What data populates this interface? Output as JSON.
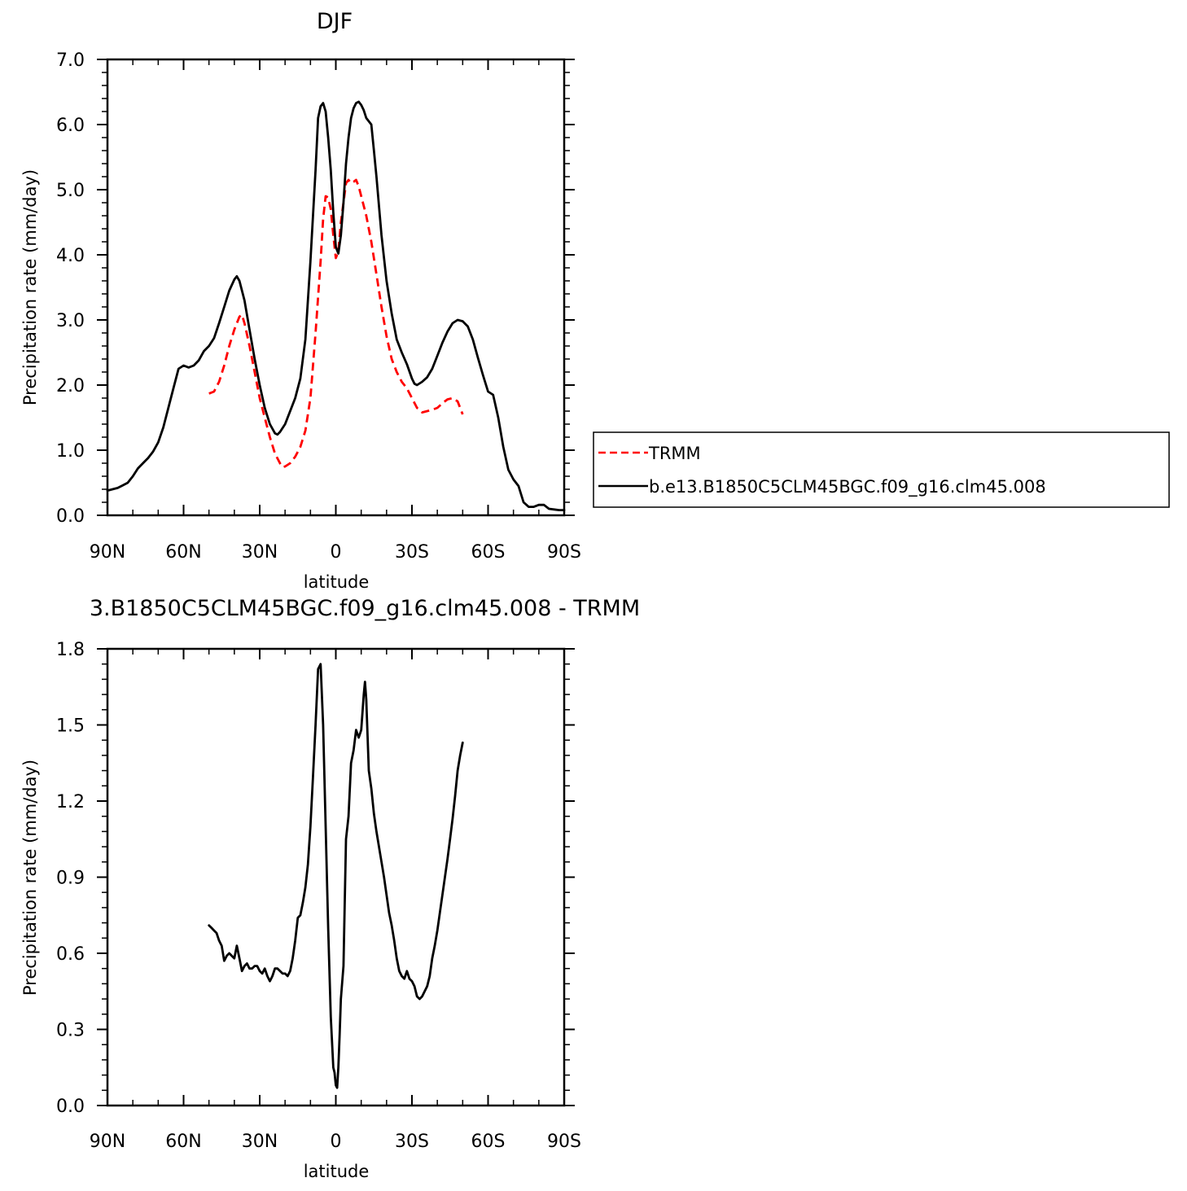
{
  "chart_data": [
    {
      "type": "line",
      "title": "DJF",
      "xlabel": "latitude",
      "ylabel": "Precipitation rate (mm/day)",
      "xlim": [
        90,
        -90
      ],
      "ylim": [
        0,
        7
      ],
      "xtick_values": [
        90,
        60,
        30,
        0,
        -30,
        -60,
        -90
      ],
      "xtick_labels": [
        "90N",
        "60N",
        "30N",
        "0",
        "30S",
        "60S",
        "90S"
      ],
      "ytick_values": [
        0,
        1,
        2,
        3,
        4,
        5,
        6,
        7
      ],
      "ytick_labels": [
        "0.0",
        "1.0",
        "2.0",
        "3.0",
        "4.0",
        "5.0",
        "6.0",
        "7.0"
      ],
      "legend": "right",
      "series": [
        {
          "name": "TRMM",
          "color": "#ff0000",
          "dash": true,
          "points": [
            [
              50,
              1.87
            ],
            [
              48,
              1.9
            ],
            [
              46,
              2.05
            ],
            [
              44,
              2.3
            ],
            [
              42,
              2.6
            ],
            [
              40,
              2.85
            ],
            [
              38,
              3.05
            ],
            [
              37,
              3.08
            ],
            [
              36,
              2.95
            ],
            [
              34,
              2.6
            ],
            [
              32,
              2.2
            ],
            [
              30,
              1.8
            ],
            [
              28,
              1.5
            ],
            [
              26,
              1.2
            ],
            [
              24,
              0.95
            ],
            [
              22,
              0.8
            ],
            [
              21,
              0.74
            ],
            [
              20,
              0.75
            ],
            [
              18,
              0.8
            ],
            [
              16,
              0.9
            ],
            [
              14,
              1.05
            ],
            [
              12,
              1.3
            ],
            [
              10,
              1.8
            ],
            [
              8,
              2.8
            ],
            [
              6,
              3.9
            ],
            [
              5,
              4.55
            ],
            [
              4,
              4.9
            ],
            [
              3,
              4.88
            ],
            [
              2,
              4.7
            ],
            [
              1,
              4.3
            ],
            [
              0,
              3.95
            ],
            [
              -1,
              4.05
            ],
            [
              -2,
              4.5
            ],
            [
              -3,
              4.8
            ],
            [
              -4,
              5.1
            ],
            [
              -5,
              5.15
            ],
            [
              -6,
              5.1
            ],
            [
              -7,
              5.12
            ],
            [
              -8,
              5.15
            ],
            [
              -9,
              5.05
            ],
            [
              -10,
              4.9
            ],
            [
              -12,
              4.6
            ],
            [
              -14,
              4.2
            ],
            [
              -16,
              3.7
            ],
            [
              -18,
              3.2
            ],
            [
              -20,
              2.75
            ],
            [
              -22,
              2.4
            ],
            [
              -24,
              2.2
            ],
            [
              -26,
              2.05
            ],
            [
              -28,
              1.95
            ],
            [
              -30,
              1.8
            ],
            [
              -32,
              1.65
            ],
            [
              -34,
              1.58
            ],
            [
              -36,
              1.6
            ],
            [
              -38,
              1.62
            ],
            [
              -40,
              1.65
            ],
            [
              -42,
              1.72
            ],
            [
              -44,
              1.78
            ],
            [
              -46,
              1.8
            ],
            [
              -48,
              1.75
            ],
            [
              -50,
              1.55
            ]
          ]
        },
        {
          "name": "b.e13.B1850C5CLM45BGC.f09_g16.clm45.008",
          "color": "#000000",
          "dash": false,
          "points": [
            [
              90,
              0.38
            ],
            [
              88,
              0.4
            ],
            [
              86,
              0.42
            ],
            [
              84,
              0.46
            ],
            [
              82,
              0.5
            ],
            [
              80,
              0.6
            ],
            [
              78,
              0.72
            ],
            [
              76,
              0.8
            ],
            [
              74,
              0.88
            ],
            [
              72,
              0.98
            ],
            [
              70,
              1.12
            ],
            [
              68,
              1.35
            ],
            [
              66,
              1.65
            ],
            [
              64,
              1.95
            ],
            [
              62,
              2.25
            ],
            [
              60,
              2.3
            ],
            [
              58,
              2.27
            ],
            [
              56,
              2.3
            ],
            [
              54,
              2.38
            ],
            [
              52,
              2.52
            ],
            [
              50,
              2.6
            ],
            [
              48,
              2.72
            ],
            [
              46,
              2.95
            ],
            [
              44,
              3.2
            ],
            [
              42,
              3.45
            ],
            [
              40,
              3.62
            ],
            [
              39,
              3.67
            ],
            [
              38,
              3.6
            ],
            [
              36,
              3.3
            ],
            [
              34,
              2.85
            ],
            [
              32,
              2.4
            ],
            [
              30,
              2.0
            ],
            [
              28,
              1.65
            ],
            [
              26,
              1.4
            ],
            [
              24,
              1.26
            ],
            [
              23,
              1.24
            ],
            [
              22,
              1.28
            ],
            [
              20,
              1.4
            ],
            [
              18,
              1.6
            ],
            [
              16,
              1.8
            ],
            [
              14,
              2.1
            ],
            [
              12,
              2.7
            ],
            [
              10,
              3.9
            ],
            [
              8,
              5.3
            ],
            [
              7,
              6.1
            ],
            [
              6,
              6.28
            ],
            [
              5,
              6.33
            ],
            [
              4,
              6.2
            ],
            [
              3,
              5.8
            ],
            [
              2,
              5.3
            ],
            [
              1,
              4.65
            ],
            [
              0,
              4.12
            ],
            [
              -1,
              4.02
            ],
            [
              -2,
              4.3
            ],
            [
              -3,
              4.8
            ],
            [
              -4,
              5.4
            ],
            [
              -5,
              5.8
            ],
            [
              -6,
              6.1
            ],
            [
              -7,
              6.25
            ],
            [
              -8,
              6.33
            ],
            [
              -9,
              6.35
            ],
            [
              -10,
              6.3
            ],
            [
              -11,
              6.22
            ],
            [
              -12,
              6.1
            ],
            [
              -14,
              6.0
            ],
            [
              -15,
              5.6
            ],
            [
              -16,
              5.2
            ],
            [
              -18,
              4.3
            ],
            [
              -20,
              3.6
            ],
            [
              -22,
              3.1
            ],
            [
              -24,
              2.7
            ],
            [
              -26,
              2.5
            ],
            [
              -28,
              2.32
            ],
            [
              -30,
              2.1
            ],
            [
              -31,
              2.02
            ],
            [
              -32,
              2.0
            ],
            [
              -34,
              2.05
            ],
            [
              -36,
              2.12
            ],
            [
              -38,
              2.25
            ],
            [
              -40,
              2.45
            ],
            [
              -42,
              2.65
            ],
            [
              -44,
              2.82
            ],
            [
              -46,
              2.95
            ],
            [
              -48,
              3.0
            ],
            [
              -50,
              2.98
            ],
            [
              -52,
              2.9
            ],
            [
              -54,
              2.7
            ],
            [
              -56,
              2.42
            ],
            [
              -58,
              2.15
            ],
            [
              -60,
              1.9
            ],
            [
              -62,
              1.85
            ],
            [
              -64,
              1.5
            ],
            [
              -66,
              1.05
            ],
            [
              -68,
              0.7
            ],
            [
              -70,
              0.55
            ],
            [
              -72,
              0.45
            ],
            [
              -74,
              0.2
            ],
            [
              -76,
              0.13
            ],
            [
              -78,
              0.13
            ],
            [
              -80,
              0.16
            ],
            [
              -82,
              0.16
            ],
            [
              -84,
              0.1
            ],
            [
              -86,
              0.09
            ],
            [
              -88,
              0.08
            ],
            [
              -90,
              0.08
            ]
          ]
        }
      ]
    },
    {
      "type": "line",
      "title": "3.B1850C5CLM45BGC.f09_g16.clm45.008 - TRMM",
      "xlabel": "latitude",
      "ylabel": "Precipitation rate (mm/day)",
      "xlim": [
        90,
        -90
      ],
      "ylim": [
        0,
        1.8
      ],
      "xtick_values": [
        90,
        60,
        30,
        0,
        -30,
        -60,
        -90
      ],
      "xtick_labels": [
        "90N",
        "60N",
        "30N",
        "0",
        "30S",
        "60S",
        "90S"
      ],
      "ytick_values": [
        0,
        0.3,
        0.6,
        0.9,
        1.2,
        1.5,
        1.8
      ],
      "ytick_labels": [
        "0.0",
        "0.3",
        "0.6",
        "0.9",
        "1.2",
        "1.5",
        "1.8"
      ],
      "series": [
        {
          "color": "#000000",
          "dash": false,
          "points": [
            [
              50,
              0.71
            ],
            [
              49,
              0.7
            ],
            [
              48,
              0.69
            ],
            [
              47,
              0.68
            ],
            [
              46,
              0.65
            ],
            [
              45,
              0.63
            ],
            [
              44,
              0.57
            ],
            [
              43,
              0.59
            ],
            [
              42,
              0.6
            ],
            [
              41,
              0.59
            ],
            [
              40,
              0.58
            ],
            [
              39,
              0.63
            ],
            [
              38,
              0.58
            ],
            [
              37,
              0.53
            ],
            [
              36,
              0.55
            ],
            [
              35,
              0.56
            ],
            [
              34,
              0.54
            ],
            [
              33,
              0.54
            ],
            [
              32,
              0.55
            ],
            [
              31,
              0.55
            ],
            [
              30,
              0.53
            ],
            [
              29,
              0.52
            ],
            [
              28,
              0.54
            ],
            [
              27,
              0.51
            ],
            [
              26,
              0.49
            ],
            [
              25,
              0.51
            ],
            [
              24,
              0.54
            ],
            [
              23,
              0.54
            ],
            [
              22,
              0.53
            ],
            [
              21,
              0.52
            ],
            [
              20,
              0.52
            ],
            [
              19,
              0.51
            ],
            [
              18,
              0.53
            ],
            [
              17,
              0.58
            ],
            [
              16,
              0.65
            ],
            [
              15,
              0.74
            ],
            [
              14,
              0.75
            ],
            [
              13,
              0.8
            ],
            [
              12,
              0.86
            ],
            [
              11,
              0.95
            ],
            [
              10,
              1.1
            ],
            [
              9,
              1.3
            ],
            [
              8,
              1.5
            ],
            [
              7,
              1.72
            ],
            [
              6,
              1.74
            ],
            [
              5,
              1.5
            ],
            [
              4,
              1.1
            ],
            [
              3,
              0.7
            ],
            [
              2,
              0.35
            ],
            [
              1,
              0.15
            ],
            [
              0.5,
              0.13
            ],
            [
              0,
              0.08
            ],
            [
              -0.5,
              0.07
            ],
            [
              -1,
              0.15
            ],
            [
              -1.5,
              0.28
            ],
            [
              -2,
              0.42
            ],
            [
              -3,
              0.55
            ],
            [
              -4,
              1.05
            ],
            [
              -5,
              1.14
            ],
            [
              -6,
              1.35
            ],
            [
              -7,
              1.4
            ],
            [
              -8,
              1.48
            ],
            [
              -9,
              1.45
            ],
            [
              -10,
              1.48
            ],
            [
              -11,
              1.62
            ],
            [
              -11.5,
              1.67
            ],
            [
              -12,
              1.6
            ],
            [
              -13,
              1.32
            ],
            [
              -14,
              1.25
            ],
            [
              -15,
              1.15
            ],
            [
              -16,
              1.08
            ],
            [
              -17,
              1.02
            ],
            [
              -18,
              0.96
            ],
            [
              -19,
              0.9
            ],
            [
              -20,
              0.83
            ],
            [
              -21,
              0.76
            ],
            [
              -22,
              0.71
            ],
            [
              -23,
              0.65
            ],
            [
              -24,
              0.58
            ],
            [
              -25,
              0.53
            ],
            [
              -26,
              0.51
            ],
            [
              -27,
              0.5
            ],
            [
              -28,
              0.53
            ],
            [
              -29,
              0.5
            ],
            [
              -30,
              0.49
            ],
            [
              -31,
              0.47
            ],
            [
              -32,
              0.43
            ],
            [
              -33,
              0.42
            ],
            [
              -34,
              0.43
            ],
            [
              -35,
              0.45
            ],
            [
              -36,
              0.47
            ],
            [
              -37,
              0.51
            ],
            [
              -38,
              0.58
            ],
            [
              -39,
              0.63
            ],
            [
              -40,
              0.69
            ],
            [
              -41,
              0.76
            ],
            [
              -42,
              0.83
            ],
            [
              -43,
              0.9
            ],
            [
              -44,
              0.97
            ],
            [
              -45,
              1.05
            ],
            [
              -46,
              1.13
            ],
            [
              -47,
              1.22
            ],
            [
              -48,
              1.32
            ],
            [
              -49,
              1.38
            ],
            [
              -50,
              1.43
            ]
          ]
        }
      ]
    }
  ]
}
